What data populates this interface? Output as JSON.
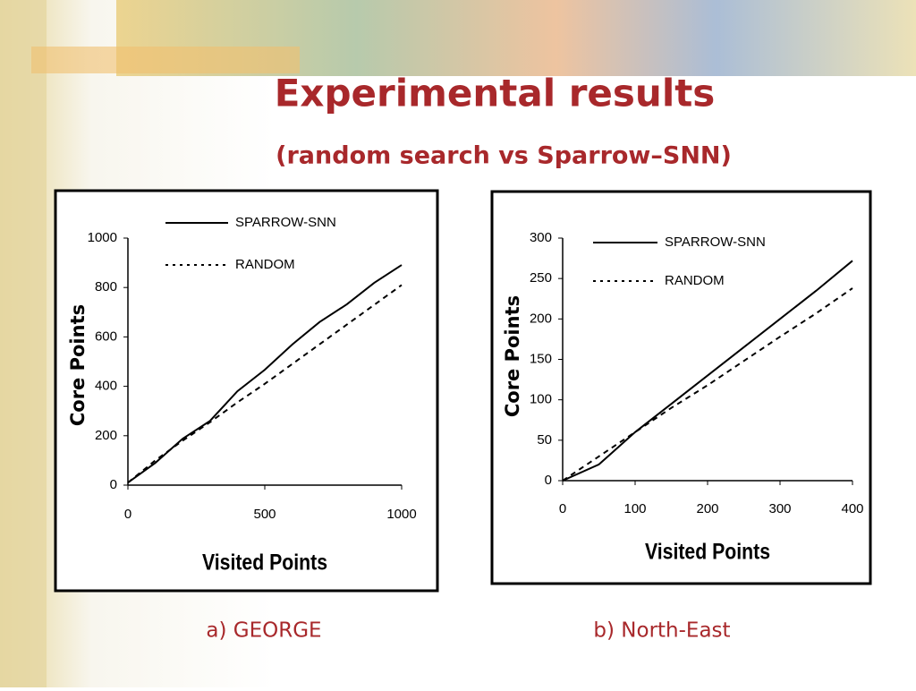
{
  "slide": {
    "title": "Experimental results",
    "subtitle": "(random search vs Sparrow–SNN)"
  },
  "chart_data": [
    {
      "type": "line",
      "caption": "a) GEORGE",
      "xlabel": "Visited Points",
      "ylabel": "Core Points",
      "x": [
        0,
        100,
        200,
        300,
        400,
        500,
        600,
        700,
        800,
        900,
        1000
      ],
      "xlim": [
        0,
        1000
      ],
      "xticks": [
        0,
        500,
        1000
      ],
      "ylim": [
        0,
        1000
      ],
      "yticks": [
        0,
        200,
        400,
        600,
        800,
        1000
      ],
      "series": [
        {
          "name": "SPARROW-SNN",
          "color": "#000000",
          "line_style": "solid",
          "values": [
            10,
            90,
            188,
            260,
            380,
            467,
            569,
            660,
            732,
            819,
            891
          ]
        },
        {
          "name": "RANDOM",
          "color": "#000000",
          "line_style": "dashed",
          "values": [
            10,
            100,
            180,
            255,
            335,
            410,
            490,
            570,
            650,
            730,
            810
          ]
        }
      ]
    },
    {
      "type": "line",
      "caption": "b) North-East",
      "xlabel": "Visited Points",
      "ylabel": "Core Points",
      "x": [
        0,
        50,
        100,
        150,
        200,
        250,
        300,
        350,
        400
      ],
      "xlim": [
        0,
        400
      ],
      "xticks": [
        0,
        100,
        200,
        300,
        400
      ],
      "ylim": [
        0,
        300
      ],
      "yticks": [
        0,
        50,
        100,
        150,
        200,
        250,
        300
      ],
      "series": [
        {
          "name": "SPARROW-SNN",
          "color": "#000000",
          "line_style": "solid",
          "values": [
            0,
            20,
            60,
            95,
            130,
            165,
            200,
            235,
            272
          ]
        },
        {
          "name": "RANDOM",
          "color": "#000000",
          "line_style": "dashed",
          "values": [
            0,
            30,
            60,
            90,
            118,
            148,
            178,
            207,
            238
          ]
        }
      ]
    }
  ]
}
